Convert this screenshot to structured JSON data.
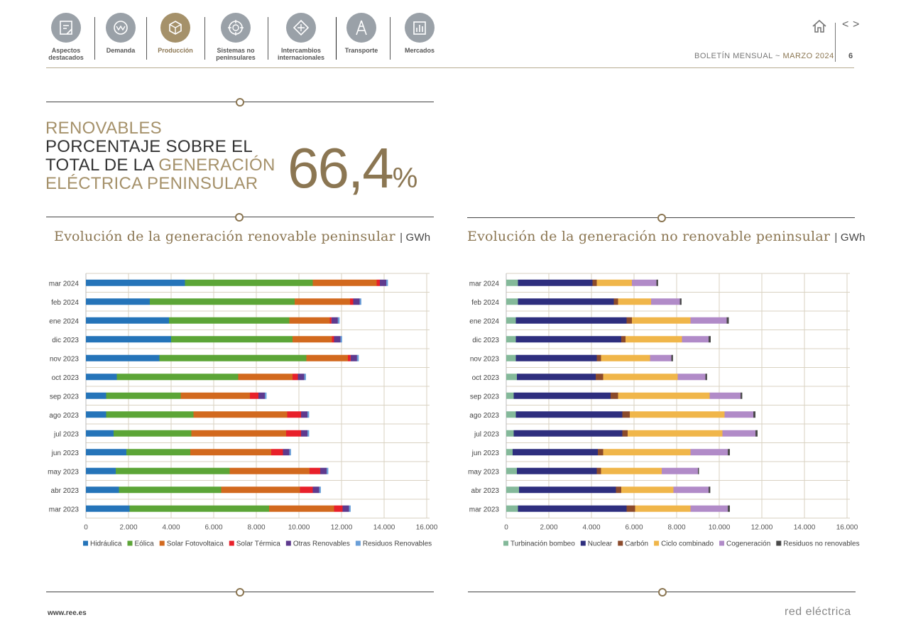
{
  "nav": {
    "items": [
      {
        "label_1": "Aspectos",
        "label_2": "destacados"
      },
      {
        "label_1": "Demanda",
        "label_2": ""
      },
      {
        "label_1": "Producción",
        "label_2": ""
      },
      {
        "label_1": "Sistemas no",
        "label_2": "peninsulares"
      },
      {
        "label_1": "Intercambios",
        "label_2": "internacionales"
      },
      {
        "label_1": "Transporte",
        "label_2": ""
      },
      {
        "label_1": "Mercados",
        "label_2": ""
      }
    ],
    "active_index": 2
  },
  "header": {
    "bulletin": "BOLETÍN MENSUAL",
    "separator": "~",
    "month": "MARZO 2024",
    "page_number": "6",
    "prev_symbol": "<",
    "next_symbol": ">"
  },
  "headline": {
    "line1": "RENOVABLES",
    "line2": "PORCENTAJE SOBRE EL",
    "line3_a": "TOTAL DE LA ",
    "line3_b": "GENERACIÓN",
    "line4": "ELÉCTRICA PENINSULAR",
    "value": "66,4",
    "unit": "%"
  },
  "footer": {
    "link": "www.ree.es",
    "logo": "red eléctrica"
  },
  "colors": {
    "gold": "#8b7652",
    "nav_gray": "#9aa1a8"
  },
  "chart_data": [
    {
      "type": "bar",
      "orientation": "horizontal",
      "stacked": true,
      "title": "Evolución de la generación renovable peninsular",
      "unit": "GWh",
      "categories": [
        "mar 2024",
        "feb 2024",
        "ene 2024",
        "dic 2023",
        "nov 2023",
        "oct 2023",
        "sep 2023",
        "ago 2023",
        "jul 2023",
        "jun 2023",
        "may 2023",
        "abr 2023",
        "mar 2023"
      ],
      "xlim": [
        0,
        16000
      ],
      "xticks": [
        0,
        2000,
        4000,
        6000,
        8000,
        10000,
        12000,
        14000,
        16000
      ],
      "xtick_labels": [
        "0",
        "2.000",
        "4.000",
        "6.000",
        "8.000",
        "10.000",
        "12.000",
        "14.000",
        "16.000"
      ],
      "legend_position": "bottom",
      "series": [
        {
          "name": "Hidráulica",
          "color": "#2574b9",
          "values": [
            4650,
            3000,
            3900,
            4000,
            3450,
            1450,
            950,
            950,
            1300,
            1900,
            1400,
            1550,
            2050
          ]
        },
        {
          "name": "Eólica",
          "color": "#5ca537",
          "values": [
            6000,
            6800,
            5650,
            5700,
            6900,
            5700,
            3500,
            4100,
            3650,
            3000,
            5350,
            4800,
            6550
          ]
        },
        {
          "name": "Solar Fotovoltaica",
          "color": "#d2691e",
          "values": [
            3000,
            2600,
            1900,
            1850,
            1950,
            2550,
            3250,
            4400,
            4450,
            3800,
            3750,
            3700,
            3050
          ]
        },
        {
          "name": "Solar Térmica",
          "color": "#e8202a",
          "values": [
            150,
            150,
            80,
            100,
            130,
            250,
            400,
            650,
            700,
            550,
            500,
            600,
            400
          ]
        },
        {
          "name": "Otras Renovables",
          "color": "#5e3a8e",
          "values": [
            300,
            300,
            300,
            300,
            300,
            300,
            300,
            300,
            300,
            300,
            300,
            300,
            300
          ]
        },
        {
          "name": "Residuos Renovables",
          "color": "#6a9fd8",
          "values": [
            80,
            80,
            80,
            80,
            80,
            80,
            80,
            80,
            80,
            80,
            80,
            80,
            80
          ]
        }
      ]
    },
    {
      "type": "bar",
      "orientation": "horizontal",
      "stacked": true,
      "title": "Evolución de la generación no renovable peninsular",
      "unit": "GWh",
      "categories": [
        "mar 2024",
        "feb 2024",
        "ene 2024",
        "dic 2023",
        "nov 2023",
        "oct 2023",
        "sep 2023",
        "ago 2023",
        "jul 2023",
        "jun 2023",
        "may 2023",
        "abr 2023",
        "mar 2023"
      ],
      "xlim": [
        0,
        16000
      ],
      "xticks": [
        0,
        2000,
        4000,
        6000,
        8000,
        10000,
        12000,
        14000,
        16000
      ],
      "xtick_labels": [
        "0",
        "2.000",
        "4.000",
        "6.000",
        "8.000",
        "10.000",
        "12.000",
        "14.000",
        "16.000"
      ],
      "legend_position": "bottom",
      "series": [
        {
          "name": "Turbinación bombeo",
          "color": "#84b99a",
          "values": [
            550,
            550,
            450,
            450,
            450,
            500,
            350,
            450,
            350,
            300,
            500,
            600,
            550
          ]
        },
        {
          "name": "Nuclear",
          "color": "#2e2e7e",
          "values": [
            3500,
            4500,
            5200,
            4950,
            3800,
            3700,
            4550,
            5000,
            5100,
            4000,
            3750,
            4550,
            5100
          ]
        },
        {
          "name": "Carbón",
          "color": "#8b4a2b",
          "values": [
            200,
            200,
            250,
            200,
            200,
            350,
            350,
            350,
            250,
            250,
            200,
            250,
            400
          ]
        },
        {
          "name": "Ciclo combinado",
          "color": "#f0b64a",
          "values": [
            1650,
            1550,
            2750,
            2650,
            2300,
            3500,
            4300,
            4450,
            4450,
            4100,
            2850,
            2450,
            2600
          ]
        },
        {
          "name": "Cogeneración",
          "color": "#b18bc8",
          "values": [
            1150,
            1350,
            1700,
            1250,
            1000,
            1300,
            1450,
            1350,
            1550,
            1750,
            1700,
            1650,
            1750
          ]
        },
        {
          "name": "Residuos no renovables",
          "color": "#4a4a4a",
          "values": [
            80,
            80,
            100,
            100,
            80,
            80,
            80,
            100,
            100,
            100,
            50,
            80,
            100
          ]
        }
      ]
    }
  ]
}
